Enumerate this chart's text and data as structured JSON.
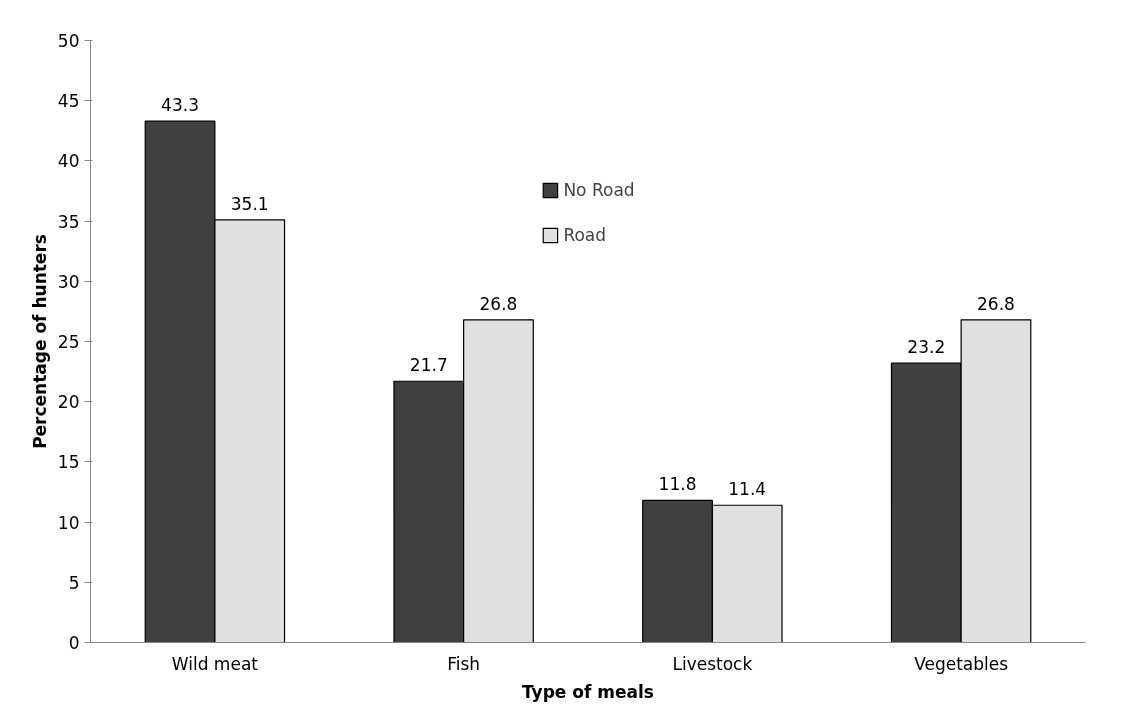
{
  "chart_data": {
    "type": "bar",
    "xlabel": "Type of meals",
    "ylabel": "Percentage of hunters",
    "categories": [
      "Wild meat",
      "Fish",
      "Livestock",
      "Vegetables"
    ],
    "series": [
      {
        "name": "No Road",
        "color": "#404040",
        "values": [
          43.3,
          21.7,
          11.8,
          23.2
        ]
      },
      {
        "name": "Road",
        "color": "#e0e0e0",
        "values": [
          35.1,
          26.8,
          11.4,
          26.8
        ]
      }
    ],
    "ylim": [
      0,
      50
    ],
    "yticks": [
      0,
      5,
      10,
      15,
      20,
      25,
      30,
      35,
      40,
      45,
      50
    ],
    "data_labels": true,
    "legend": "top",
    "grid": false
  }
}
